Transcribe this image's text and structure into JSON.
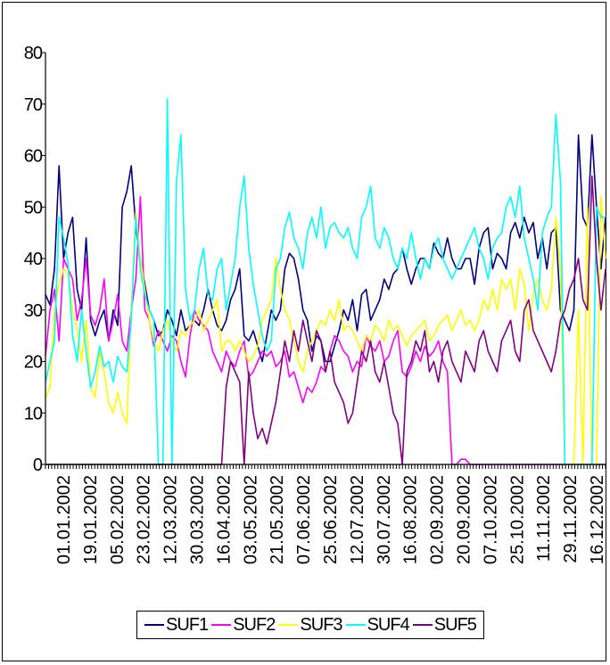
{
  "chart_data": {
    "type": "line",
    "title": "",
    "xlabel": "",
    "ylabel": "",
    "ylim": [
      0,
      80
    ],
    "yticks": [
      0,
      10,
      20,
      30,
      40,
      50,
      60,
      70,
      80
    ],
    "x_tick_labels": [
      "01.01.2002",
      "19.01.2002",
      "05.02.2002",
      "23.02.2002",
      "12.03.2002",
      "30.03.2002",
      "16.04.2002",
      "03.05.2002",
      "21.05.2002",
      "07.06.2002",
      "25.06.2002",
      "12.07.2002",
      "30.07.2002",
      "16.08.2002",
      "02.09.2002",
      "20.09.2002",
      "07.10.2002",
      "25.10.2002",
      "11.11.2002",
      "29.11.2002",
      "16.12.2002"
    ],
    "legend_position": "bottom",
    "series": [
      {
        "name": "SUF1",
        "color": "#000080",
        "values": [
          33,
          31,
          38,
          58,
          40,
          45,
          48,
          34,
          30,
          44,
          28,
          25,
          28,
          30,
          24,
          30,
          27,
          50,
          53,
          58,
          46,
          40,
          35,
          30,
          28,
          25,
          26,
          30,
          28,
          25,
          30,
          26,
          27,
          28,
          27,
          30,
          34,
          30,
          27,
          26,
          28,
          32,
          34,
          38,
          25,
          24,
          26,
          23,
          20,
          25,
          30,
          28,
          30,
          38,
          41,
          40,
          36,
          30,
          28,
          22,
          25,
          24,
          20,
          20,
          23,
          26,
          30,
          28,
          32,
          26,
          33,
          34,
          28,
          30,
          32,
          36,
          34,
          37,
          38,
          42,
          38,
          35,
          38,
          40,
          40,
          38,
          43,
          41,
          40,
          44,
          40,
          38,
          38,
          40,
          40,
          35,
          42,
          45,
          46,
          38,
          41,
          40,
          38,
          45,
          47,
          44,
          48,
          45,
          47,
          40,
          44,
          38,
          45,
          46,
          30,
          28,
          26,
          30,
          64,
          48,
          46,
          64,
          50,
          38,
          48
        ]
      },
      {
        "name": "SUF2",
        "color": "#ff00ff",
        "values": [
          21,
          30,
          34,
          24,
          40,
          38,
          36,
          28,
          32,
          40,
          29,
          27,
          30,
          36,
          24,
          28,
          33,
          24,
          22,
          30,
          36,
          52,
          30,
          28,
          23,
          26,
          24,
          22,
          25,
          24,
          20,
          17,
          25,
          30,
          28,
          27,
          26,
          22,
          20,
          18,
          22,
          20,
          19,
          22,
          24,
          17,
          18,
          20,
          22,
          21,
          22,
          19,
          20,
          22,
          17,
          18,
          15,
          12,
          15,
          14,
          16,
          19,
          18,
          22,
          25,
          24,
          22,
          21,
          18,
          20,
          19,
          25,
          23,
          22,
          24,
          20,
          21,
          24,
          26,
          18,
          17,
          19,
          22,
          20,
          23,
          21,
          22,
          24,
          20,
          18,
          0,
          0,
          1,
          1,
          0,
          0,
          0,
          0,
          0,
          0,
          0,
          0,
          0,
          0,
          0,
          0,
          0,
          0,
          0,
          0,
          0,
          0,
          0,
          0,
          0,
          0,
          0,
          0,
          0,
          0,
          0,
          0,
          0,
          0,
          0
        ]
      },
      {
        "name": "SUF3",
        "color": "#ffff00",
        "values": [
          13,
          15,
          30,
          35,
          38,
          37,
          30,
          26,
          20,
          28,
          15,
          13,
          22,
          18,
          12,
          10,
          14,
          10,
          8,
          30,
          49,
          40,
          34,
          28,
          24,
          22,
          26,
          28,
          24,
          22,
          26,
          25,
          27,
          28,
          30,
          26,
          28,
          30,
          32,
          22,
          24,
          24,
          22,
          24,
          22,
          20,
          21,
          23,
          28,
          30,
          32,
          40,
          34,
          30,
          28,
          24,
          20,
          18,
          22,
          24,
          26,
          28,
          27,
          30,
          28,
          32,
          26,
          27,
          26,
          24,
          22,
          25,
          24,
          27,
          26,
          24,
          28,
          26,
          27,
          25,
          23,
          25,
          26,
          27,
          28,
          24,
          25,
          27,
          28,
          29,
          26,
          28,
          30,
          27,
          28,
          26,
          28,
          32,
          30,
          34,
          30,
          36,
          34,
          36,
          30,
          38,
          35,
          26,
          33,
          36,
          32,
          30,
          34,
          48,
          38,
          0,
          0,
          0,
          30,
          0,
          50,
          0,
          0,
          52,
          40
        ]
      },
      {
        "name": "SUF4",
        "color": "#00ffff",
        "values": [
          16,
          20,
          24,
          48,
          44,
          39,
          25,
          20,
          30,
          22,
          15,
          18,
          23,
          19,
          20,
          16,
          21,
          19,
          18,
          28,
          48,
          38,
          33,
          30,
          28,
          0,
          0,
          71,
          0,
          55,
          64,
          34,
          28,
          30,
          38,
          42,
          33,
          32,
          38,
          40,
          30,
          35,
          40,
          50,
          56,
          42,
          35,
          30,
          25,
          22,
          24,
          38,
          40,
          46,
          49,
          44,
          42,
          38,
          45,
          48,
          44,
          50,
          42,
          46,
          47,
          45,
          44,
          46,
          42,
          40,
          48,
          50,
          54,
          44,
          42,
          46,
          44,
          40,
          38,
          42,
          40,
          45,
          40,
          36,
          40,
          38,
          42,
          44,
          40,
          38,
          36,
          38,
          40,
          42,
          44,
          46,
          42,
          40,
          36,
          42,
          44,
          45,
          50,
          52,
          48,
          54,
          44,
          40,
          36,
          30,
          45,
          48,
          50,
          68,
          55,
          0,
          0,
          0,
          0,
          0,
          0,
          0,
          50,
          48,
          48
        ]
      },
      {
        "name": "SUF5",
        "color": "#800080",
        "values": [
          0,
          0,
          0,
          0,
          0,
          0,
          0,
          0,
          0,
          0,
          0,
          0,
          0,
          0,
          0,
          0,
          0,
          0,
          0,
          0,
          0,
          0,
          0,
          0,
          0,
          0,
          0,
          0,
          0,
          0,
          0,
          0,
          0,
          0,
          0,
          0,
          0,
          0,
          0,
          0,
          15,
          20,
          18,
          16,
          0,
          18,
          10,
          5,
          7,
          4,
          8,
          12,
          18,
          24,
          20,
          26,
          22,
          28,
          24,
          20,
          26,
          24,
          18,
          22,
          16,
          14,
          12,
          8,
          10,
          16,
          22,
          20,
          24,
          18,
          16,
          20,
          15,
          10,
          8,
          0,
          18,
          20,
          24,
          22,
          26,
          18,
          20,
          16,
          22,
          24,
          20,
          18,
          16,
          22,
          20,
          18,
          24,
          26,
          22,
          20,
          18,
          24,
          26,
          28,
          22,
          20,
          30,
          32,
          26,
          24,
          22,
          20,
          18,
          22,
          28,
          30,
          34,
          36,
          40,
          32,
          30,
          56,
          40,
          30,
          38
        ]
      }
    ]
  }
}
